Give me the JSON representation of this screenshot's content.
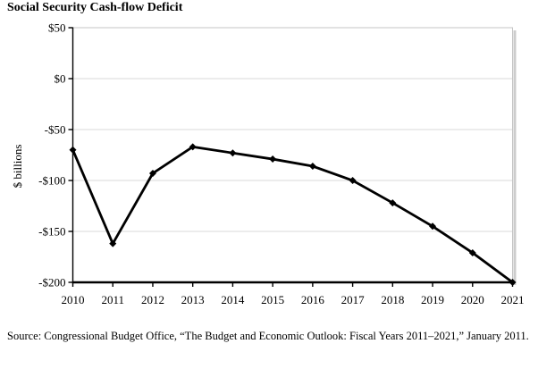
{
  "header": {
    "title": "Social Security Cash-flow Deficit"
  },
  "chart_data": {
    "type": "line",
    "title": "Social Security Cash-flow Deficit",
    "xlabel": "",
    "ylabel": "$ billions",
    "categories": [
      "2010",
      "2011",
      "2012",
      "2013",
      "2014",
      "2015",
      "2016",
      "2017",
      "2018",
      "2019",
      "2020",
      "2021"
    ],
    "series": [
      {
        "name": "Social Security cash-flow deficit ($ billions)",
        "values": [
          -70,
          -162,
          -93,
          -67,
          -73,
          -79,
          -86,
          -100,
          -122,
          -145,
          -171,
          -200
        ]
      }
    ],
    "ylim": [
      -200,
      50
    ],
    "yticks": [
      {
        "value": 50,
        "label": "$50"
      },
      {
        "value": 0,
        "label": "$0"
      },
      {
        "value": -50,
        "label": "-$50"
      },
      {
        "value": -100,
        "label": "-$100"
      },
      {
        "value": -150,
        "label": "-$150"
      },
      {
        "value": -200,
        "label": "-$200"
      }
    ],
    "grid": true,
    "legend": "none",
    "marker": "diamond",
    "colors": {
      "line": "#000000",
      "axis": "#000000",
      "gridline": "#d9d9d9",
      "border": "#c4c4c4",
      "shadow": "#9a9a9a",
      "text": "#000000"
    }
  },
  "source": {
    "text": "Source: Congressional Budget Office, “The Budget and Economic Outlook: Fiscal Years 2011–2021,” January 2011."
  }
}
